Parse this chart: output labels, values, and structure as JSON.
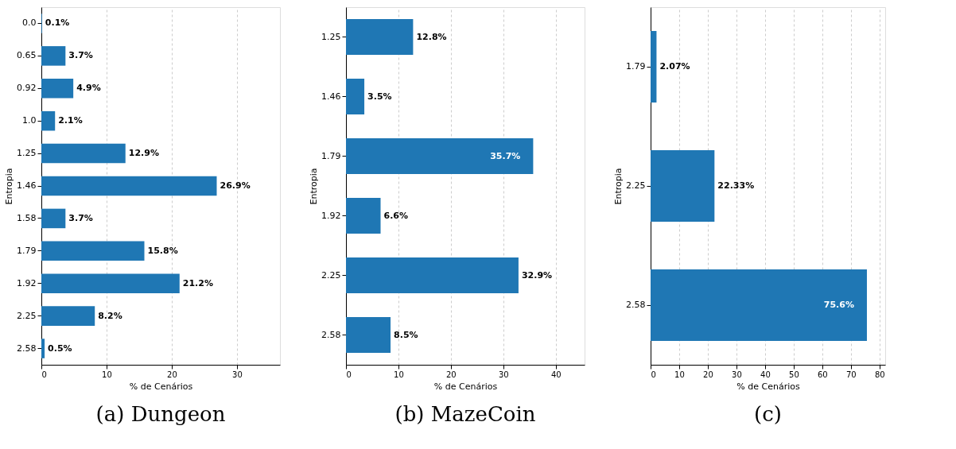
{
  "chart_data": [
    {
      "type": "bar",
      "orientation": "horizontal",
      "title": "(a) Dungeon",
      "xlabel": "% de Cenários",
      "ylabel": "Entropia",
      "categories": [
        "0.0",
        "0.65",
        "0.92",
        "1.0",
        "1.25",
        "1.46",
        "1.58",
        "1.79",
        "1.92",
        "2.25",
        "2.58"
      ],
      "values": [
        0.1,
        3.7,
        4.9,
        2.1,
        12.9,
        26.9,
        3.7,
        15.8,
        21.2,
        8.2,
        0.5
      ],
      "value_labels": [
        "0.1%",
        "3.7%",
        "4.9%",
        "2.1%",
        "12.9%",
        "26.9%",
        "3.7%",
        "15.8%",
        "21.2%",
        "8.2%",
        "0.5%"
      ],
      "color": "#1f77b4",
      "xlim": [
        0,
        36.6
      ],
      "xticks": [
        0,
        10,
        20,
        30
      ],
      "grid": "x"
    },
    {
      "type": "bar",
      "orientation": "horizontal",
      "title": "(b) MazeCoin",
      "xlabel": "% de Cenários",
      "ylabel": "Entropia",
      "categories": [
        "1.25",
        "1.46",
        "1.79",
        "1.92",
        "2.25",
        "2.58"
      ],
      "values": [
        12.8,
        3.5,
        35.7,
        6.6,
        32.9,
        8.5
      ],
      "value_labels": [
        "12.8%",
        "3.5%",
        "35.7%",
        "6.6%",
        "32.9%",
        "8.5%"
      ],
      "color": "#1f77b4",
      "xlim": [
        0,
        45.5
      ],
      "xticks": [
        0,
        10,
        20,
        30,
        40
      ],
      "grid": "x"
    },
    {
      "type": "bar",
      "orientation": "horizontal",
      "title": "(c)",
      "xlabel": "% de Cenários",
      "ylabel": "Entropia",
      "categories": [
        "1.79",
        "2.25",
        "2.58"
      ],
      "values": [
        2.07,
        22.33,
        75.6
      ],
      "value_labels": [
        "2.07%",
        "22.33%",
        "75.6%"
      ],
      "color": "#1f77b4",
      "xlim": [
        0,
        82
      ],
      "xticks": [
        0,
        10,
        20,
        30,
        40,
        50,
        60,
        70,
        80
      ],
      "grid": "x"
    }
  ]
}
